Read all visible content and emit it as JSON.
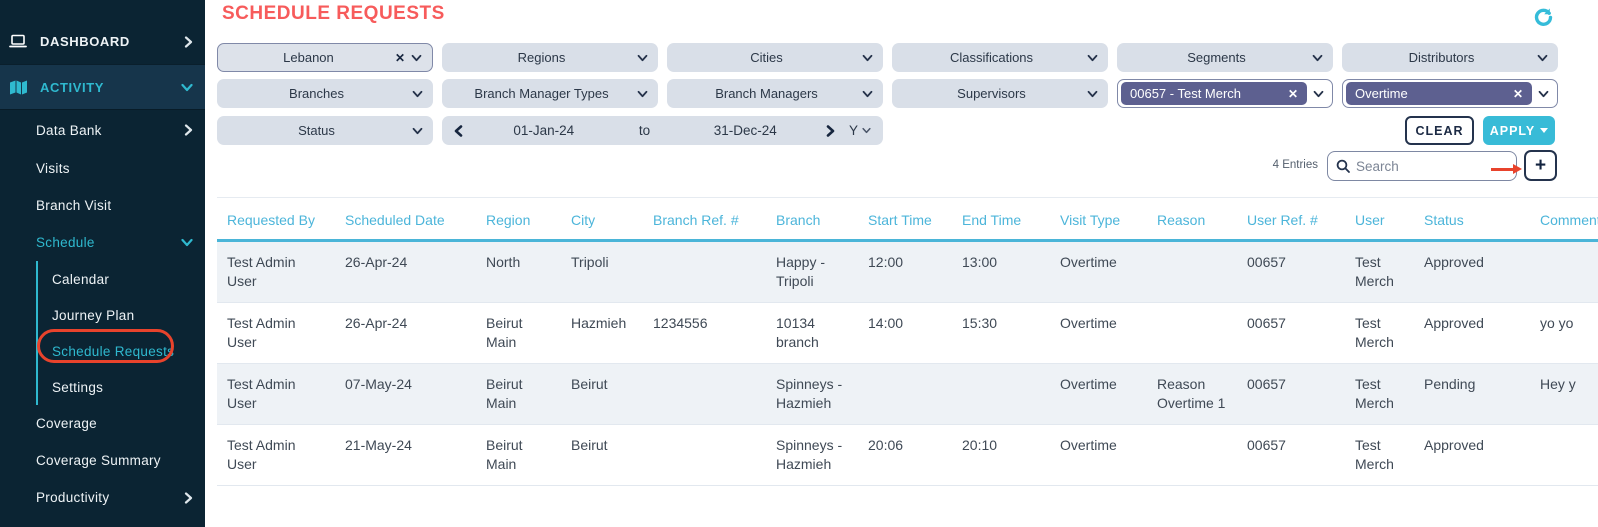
{
  "page": {
    "title": "SCHEDULE REQUESTS",
    "entries_count": "4 Entries",
    "search_placeholder": "Search",
    "add_button_label": "+",
    "clear_button_label": "CLEAR",
    "apply_button_label": "APPLY"
  },
  "sidebar": {
    "dashboard": "DASHBOARD",
    "activity": "ACTIVITY",
    "data_bank": "Data Bank",
    "visits": "Visits",
    "branch_visit": "Branch Visit",
    "schedule": "Schedule",
    "calendar": "Calendar",
    "journey_plan": "Journey Plan",
    "schedule_requests": "Schedule Requests",
    "settings": "Settings",
    "coverage": "Coverage",
    "coverage_summary": "Coverage Summary",
    "productivity": "Productivity"
  },
  "filters": {
    "country_value": "Lebanon",
    "regions": "Regions",
    "cities": "Cities",
    "classifications": "Classifications",
    "segments": "Segments",
    "distributors": "Distributors",
    "branches": "Branches",
    "branch_manager_types": "Branch Manager Types",
    "branch_managers": "Branch Managers",
    "supervisors": "Supervisors",
    "user_tag_value": "00657 - Test Merch",
    "visit_type_tag_value": "Overtime",
    "status": "Status",
    "date_from": "01-Jan-24",
    "date_to_word": "to",
    "date_to": "31-Dec-24",
    "period_granularity": "Y",
    "remove_glyph": "✕"
  },
  "icons": {
    "laptop": "laptop glyph",
    "map": "folded-map glyph",
    "chevron_right": "❯",
    "chevron_down": "⌄",
    "chevron_left": "❮",
    "search": "magnifier",
    "refresh": "circular-arrow",
    "plus": "+",
    "caret_down": "▾",
    "annotation_arrow": "red right arrow",
    "annotation_oval": "red oval highlight"
  },
  "colors": {
    "sidebar_bg": "#0b2433",
    "sidebar_active_bg": "#16354b",
    "teal_accent": "#2fb9cf",
    "apply_teal": "#38bbd7",
    "title_red": "#f75b5b",
    "annotation_red": "#e8432c",
    "pill_bg": "#d9dfe8",
    "tag_chip_purple": "#5d6090",
    "table_header_blue": "#4cb5da",
    "row_alt_bg": "#eef2f6"
  },
  "table": {
    "headers": [
      "Requested By",
      "Scheduled Date",
      "Region",
      "City",
      "Branch Ref. #",
      "Branch",
      "Start Time",
      "End Time",
      "Visit Type",
      "Reason",
      "User Ref. #",
      "User",
      "Status",
      "Comments"
    ],
    "rows": [
      [
        "Test Admin User",
        "26-Apr-24",
        "North",
        "Tripoli",
        "",
        "Happy - Tripoli",
        "12:00",
        "13:00",
        "Overtime",
        "",
        "00657",
        "Test Merch",
        "Approved",
        ""
      ],
      [
        "Test Admin User",
        "26-Apr-24",
        "Beirut Main",
        "Hazmieh",
        "1234556",
        "10134 branch",
        "14:00",
        "15:30",
        "Overtime",
        "",
        "00657",
        "Test Merch",
        "Approved",
        "yo yo"
      ],
      [
        "Test Admin User",
        "07-May-24",
        "Beirut Main",
        "Beirut",
        "",
        "Spinneys - Hazmieh",
        "",
        "",
        "Overtime",
        "Reason Overtime 1",
        "00657",
        "Test Merch",
        "Pending",
        "Hey y"
      ],
      [
        "Test Admin User",
        "21-May-24",
        "Beirut Main",
        "Beirut",
        "",
        "Spinneys - Hazmieh",
        "20:06",
        "20:10",
        "Overtime",
        "",
        "00657",
        "Test Merch",
        "Approved",
        ""
      ]
    ]
  }
}
